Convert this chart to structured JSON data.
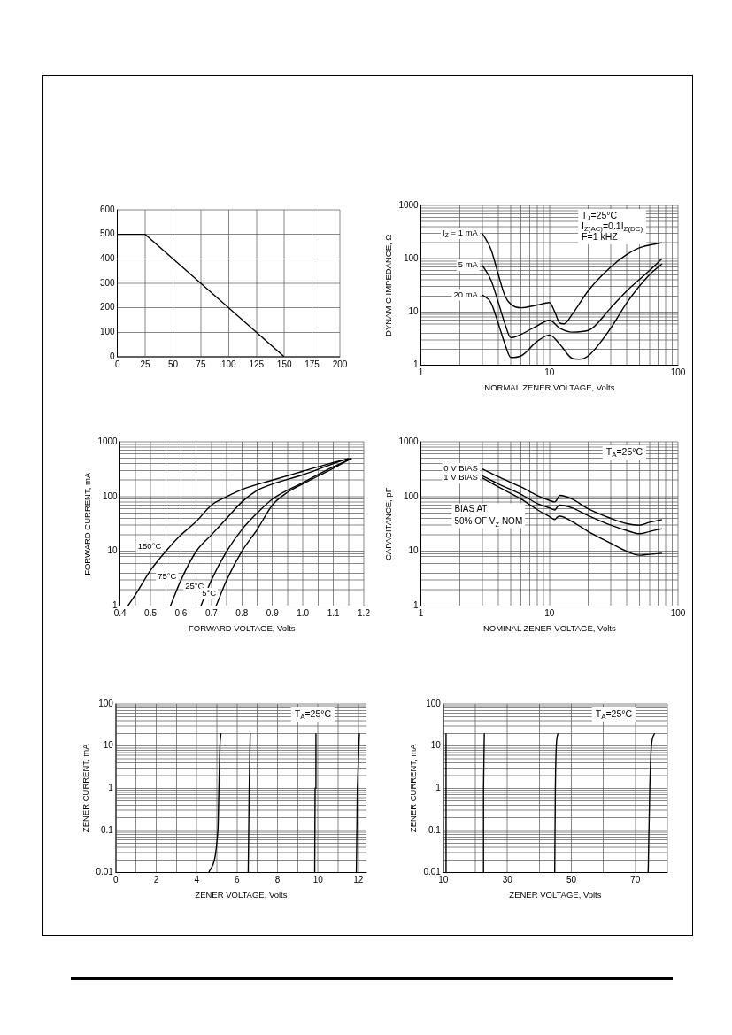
{
  "chart_data": [
    {
      "type": "line",
      "grid": true,
      "xlim": [
        0,
        200
      ],
      "ylim": [
        0,
        600
      ],
      "xticks": [
        0,
        25,
        50,
        75,
        100,
        125,
        150,
        175,
        200
      ],
      "yticks": [
        0,
        100,
        200,
        300,
        400,
        500,
        600
      ],
      "series": [
        {
          "color": "#000000",
          "x": [
            0,
            25,
            150
          ],
          "values": [
            500,
            500,
            0
          ]
        }
      ]
    },
    {
      "type": "line",
      "grid": true,
      "log": "xy",
      "xlabel": "NORMAL ZENER VOLTAGE, Volts",
      "ylabel": "DYNAMIC IMPEDANCE, Ω",
      "xlim": [
        1,
        100
      ],
      "ylim": [
        1,
        1000
      ],
      "xticks": [
        1,
        {
          "value": 2,
          "label": null
        },
        {
          "value": 3,
          "label": null
        },
        {
          "value": 4,
          "label": null
        },
        {
          "value": 5,
          "label": null
        },
        {
          "value": 6,
          "label": null
        },
        {
          "value": 7,
          "label": null
        },
        {
          "value": 8,
          "label": null
        },
        {
          "value": 9,
          "label": null
        },
        10,
        {
          "value": 20,
          "label": null
        },
        {
          "value": 30,
          "label": null
        },
        {
          "value": 40,
          "label": null
        },
        {
          "value": 50,
          "label": null
        },
        {
          "value": 60,
          "label": null
        },
        {
          "value": 70,
          "label": null
        },
        {
          "value": 80,
          "label": null
        },
        {
          "value": 90,
          "label": null
        },
        100
      ],
      "yticks": [
        1,
        {
          "value": 2,
          "label": null
        },
        {
          "value": 3,
          "label": null
        },
        {
          "value": 4,
          "label": null
        },
        {
          "value": 5,
          "label": null
        },
        {
          "value": 6,
          "label": null
        },
        {
          "value": 7,
          "label": null
        },
        {
          "value": 8,
          "label": null
        },
        {
          "value": 9,
          "label": null
        },
        10,
        {
          "value": 20,
          "label": null
        },
        {
          "value": 30,
          "label": null
        },
        {
          "value": 40,
          "label": null
        },
        {
          "value": 50,
          "label": null
        },
        {
          "value": 60,
          "label": null
        },
        {
          "value": 70,
          "label": null
        },
        {
          "value": 80,
          "label": null
        },
        {
          "value": 90,
          "label": null
        },
        100,
        {
          "value": 200,
          "label": null
        },
        {
          "value": 300,
          "label": null
        },
        {
          "value": 400,
          "label": null
        },
        {
          "value": 500,
          "label": null
        },
        {
          "value": 600,
          "label": null
        },
        {
          "value": 700,
          "label": null
        },
        {
          "value": 800,
          "label": null
        },
        {
          "value": 900,
          "label": null
        },
        1000
      ],
      "series": [
        {
          "color": "#000000",
          "x": [
            3,
            3.5,
            4,
            4.5,
            5,
            6,
            8,
            10,
            11,
            12,
            13,
            15,
            20,
            30,
            40,
            50,
            75
          ],
          "values": [
            300,
            150,
            50,
            20,
            14,
            12,
            13.5,
            15,
            10,
            6.2,
            6,
            9,
            25,
            70,
            120,
            160,
            200
          ]
        },
        {
          "color": "#000000",
          "x": [
            3,
            3.5,
            4,
            4.5,
            5,
            6,
            8,
            10,
            12,
            15,
            20,
            30,
            40,
            60,
            75
          ],
          "values": [
            75,
            40,
            15,
            6,
            3.3,
            3.8,
            5.5,
            7,
            5,
            4.2,
            4.5,
            12,
            25,
            60,
            100
          ]
        },
        {
          "color": "#000000",
          "x": [
            3,
            3.5,
            4,
            4.5,
            5,
            6,
            8,
            10,
            12,
            15,
            17,
            20,
            30,
            40,
            60,
            75
          ],
          "values": [
            21,
            15,
            6,
            2.5,
            1.4,
            1.5,
            2.8,
            3.7,
            2.5,
            1.35,
            1.3,
            1.5,
            5,
            15,
            50,
            80
          ]
        }
      ],
      "annotations": [
        "T$_{J}$=25°C",
        "I$_{Z(AC)}$=0.1I$_{Z(DC)}$",
        "F=1 kHZ",
        {
          "text": "I$_{Z}$ = 1 mA",
          "x": 3,
          "y": 300
        },
        {
          "text": "5 mA",
          "x": 3,
          "y": 75
        },
        {
          "text": "20 mA",
          "x": 3,
          "y": 21
        }
      ]
    },
    {
      "type": "line",
      "grid": true,
      "log": "y",
      "xlabel": "FORWARD VOLTAGE, Volts",
      "ylabel": "FORWARD CURRENT, mA",
      "xlim": [
        0.4,
        1.2
      ],
      "ylim": [
        1,
        1000
      ],
      "xticks": [
        0.4,
        {
          "value": 0.45,
          "label": null
        },
        0.5,
        {
          "value": 0.55,
          "label": null
        },
        0.6,
        {
          "value": 0.65,
          "label": null
        },
        0.7,
        {
          "value": 0.75,
          "label": null
        },
        0.8,
        {
          "value": 0.85,
          "label": null
        },
        0.9,
        {
          "value": 0.95,
          "label": null
        },
        {
          "value": 1,
          "label": "1.0"
        },
        {
          "value": 1.05,
          "label": null
        },
        1.1,
        {
          "value": 1.15,
          "label": null
        },
        1.2
      ],
      "yticks": [
        1,
        {
          "value": 2,
          "label": null
        },
        {
          "value": 3,
          "label": null
        },
        {
          "value": 4,
          "label": null
        },
        {
          "value": 5,
          "label": null
        },
        {
          "value": 6,
          "label": null
        },
        {
          "value": 7,
          "label": null
        },
        {
          "value": 8,
          "label": null
        },
        {
          "value": 9,
          "label": null
        },
        10,
        {
          "value": 20,
          "label": null
        },
        {
          "value": 30,
          "label": null
        },
        {
          "value": 40,
          "label": null
        },
        {
          "value": 50,
          "label": null
        },
        {
          "value": 60,
          "label": null
        },
        {
          "value": 70,
          "label": null
        },
        {
          "value": 80,
          "label": null
        },
        {
          "value": 90,
          "label": null
        },
        100,
        {
          "value": 200,
          "label": null
        },
        {
          "value": 300,
          "label": null
        },
        {
          "value": 400,
          "label": null
        },
        {
          "value": 500,
          "label": null
        },
        {
          "value": 600,
          "label": null
        },
        {
          "value": 700,
          "label": null
        },
        {
          "value": 800,
          "label": null
        },
        {
          "value": 900,
          "label": null
        },
        1000
      ],
      "series": [
        {
          "color": "#000000",
          "x": [
            0.425,
            0.45,
            0.5,
            0.55,
            0.6,
            0.65,
            0.7,
            0.75,
            0.8,
            0.9,
            1.0,
            1.1,
            1.16
          ],
          "values": [
            1,
            1.6,
            4.5,
            10,
            20,
            35,
            70,
            100,
            135,
            200,
            290,
            420,
            500
          ]
        },
        {
          "color": "#000000",
          "x": [
            0.565,
            0.6,
            0.65,
            0.7,
            0.75,
            0.8,
            0.85,
            0.9,
            1.0,
            1.1,
            1.15
          ],
          "values": [
            1,
            3,
            10,
            20,
            40,
            80,
            130,
            170,
            250,
            400,
            500
          ]
        },
        {
          "color": "#000000",
          "x": [
            0.665,
            0.7,
            0.75,
            0.8,
            0.85,
            0.9,
            1.0,
            1.1,
            1.16
          ],
          "values": [
            1,
            3,
            10,
            25,
            50,
            90,
            180,
            350,
            500
          ]
        },
        {
          "color": "#000000",
          "x": [
            0.715,
            0.75,
            0.8,
            0.85,
            0.9,
            0.95,
            1.0,
            1.1,
            1.16
          ],
          "values": [
            1,
            3,
            10,
            25,
            70,
            120,
            170,
            330,
            500
          ]
        }
      ],
      "annotations": [
        {
          "text": "150°C",
          "x": 0.55,
          "y": 12
        },
        {
          "text": "75°C",
          "x": 0.6,
          "y": 3.5
        },
        {
          "text": "25°C",
          "x": 0.69,
          "y": 2.3
        },
        {
          "text": "5°C",
          "x": 0.73,
          "y": 1.7
        }
      ]
    },
    {
      "type": "line",
      "grid": true,
      "log": "xy",
      "xlabel": "NOMINAL ZENER VOLTAGE, Volts",
      "ylabel": "CAPACITANCE, pF",
      "xlim": [
        1,
        100
      ],
      "ylim": [
        1,
        1000
      ],
      "xticks": [
        1,
        {
          "value": 2,
          "label": null
        },
        {
          "value": 3,
          "label": null
        },
        {
          "value": 4,
          "label": null
        },
        {
          "value": 5,
          "label": null
        },
        {
          "value": 6,
          "label": null
        },
        {
          "value": 7,
          "label": null
        },
        {
          "value": 8,
          "label": null
        },
        {
          "value": 9,
          "label": null
        },
        10,
        {
          "value": 20,
          "label": null
        },
        {
          "value": 30,
          "label": null
        },
        {
          "value": 40,
          "label": null
        },
        {
          "value": 50,
          "label": null
        },
        {
          "value": 60,
          "label": null
        },
        {
          "value": 70,
          "label": null
        },
        {
          "value": 80,
          "label": null
        },
        {
          "value": 90,
          "label": null
        },
        100
      ],
      "yticks": [
        1,
        {
          "value": 2,
          "label": null
        },
        {
          "value": 3,
          "label": null
        },
        {
          "value": 4,
          "label": null
        },
        {
          "value": 5,
          "label": null
        },
        {
          "value": 6,
          "label": null
        },
        {
          "value": 7,
          "label": null
        },
        {
          "value": 8,
          "label": null
        },
        {
          "value": 9,
          "label": null
        },
        10,
        {
          "value": 20,
          "label": null
        },
        {
          "value": 30,
          "label": null
        },
        {
          "value": 40,
          "label": null
        },
        {
          "value": 50,
          "label": null
        },
        {
          "value": 60,
          "label": null
        },
        {
          "value": 70,
          "label": null
        },
        {
          "value": 80,
          "label": null
        },
        {
          "value": 90,
          "label": null
        },
        100,
        {
          "value": 200,
          "label": null
        },
        {
          "value": 300,
          "label": null
        },
        {
          "value": 400,
          "label": null
        },
        {
          "value": 500,
          "label": null
        },
        {
          "value": 600,
          "label": null
        },
        {
          "value": 700,
          "label": null
        },
        {
          "value": 800,
          "label": null
        },
        {
          "value": 900,
          "label": null
        },
        1000
      ],
      "series": [
        {
          "color": "#000000",
          "x": [
            3,
            4,
            6,
            8,
            10,
            11,
            11.5,
            12,
            15,
            20,
            30,
            40,
            50,
            60,
            75
          ],
          "values": [
            320,
            230,
            150,
            105,
            85,
            80,
            90,
            105,
            90,
            60,
            40,
            32,
            30,
            34,
            38
          ]
        },
        {
          "color": "#000000",
          "x": [
            3,
            4,
            6,
            8,
            10,
            11,
            11.5,
            12,
            15,
            20,
            30,
            40,
            50,
            60,
            75
          ],
          "values": [
            240,
            170,
            110,
            75,
            62,
            57,
            65,
            70,
            62,
            45,
            30,
            24,
            21,
            23,
            26
          ]
        },
        {
          "color": "#000000",
          "x": [
            3,
            4,
            6,
            8,
            10,
            11,
            11.5,
            12,
            15,
            20,
            30,
            40,
            50,
            60,
            75
          ],
          "values": [
            220,
            150,
            90,
            58,
            43,
            38,
            42,
            44,
            35,
            23,
            14,
            10,
            8.5,
            8.8,
            9.2
          ]
        }
      ],
      "annotations": [
        "T$_{A}$=25°C",
        {
          "text": "0 V BIAS",
          "x": 3,
          "y": 320
        },
        {
          "text": "1 V BIAS",
          "x": 3,
          "y": 220
        },
        "BIAS AT\n50% OF V$_{Z}$ NOM"
      ]
    },
    {
      "type": "line",
      "grid": true,
      "log": "y",
      "xlabel": "ZENER VOLTAGE, Volts",
      "ylabel": "ZENER CURRENT, mA",
      "xlim": [
        0,
        12.4
      ],
      "ylim": [
        0.01,
        100
      ],
      "xticks": [
        0,
        {
          "value": 1,
          "label": null
        },
        2,
        {
          "value": 3,
          "label": null
        },
        4,
        {
          "value": 5,
          "label": null
        },
        6,
        {
          "value": 7,
          "label": null
        },
        8,
        {
          "value": 9,
          "label": null
        },
        10,
        {
          "value": 11,
          "label": null
        },
        12
      ],
      "yticks": [
        0.01,
        {
          "value": 0.02,
          "label": null
        },
        {
          "value": 0.03,
          "label": null
        },
        {
          "value": 0.04,
          "label": null
        },
        {
          "value": 0.05,
          "label": null
        },
        {
          "value": 0.06,
          "label": null
        },
        {
          "value": 0.07,
          "label": null
        },
        {
          "value": 0.08,
          "label": null
        },
        {
          "value": 0.09,
          "label": null
        },
        0.1,
        {
          "value": 0.2,
          "label": null
        },
        {
          "value": 0.3,
          "label": null
        },
        {
          "value": 0.4,
          "label": null
        },
        {
          "value": 0.5,
          "label": null
        },
        {
          "value": 0.6,
          "label": null
        },
        {
          "value": 0.7,
          "label": null
        },
        {
          "value": 0.8,
          "label": null
        },
        {
          "value": 0.9,
          "label": null
        },
        1,
        {
          "value": 2,
          "label": null
        },
        {
          "value": 3,
          "label": null
        },
        {
          "value": 4,
          "label": null
        },
        {
          "value": 5,
          "label": null
        },
        {
          "value": 6,
          "label": null
        },
        {
          "value": 7,
          "label": null
        },
        {
          "value": 8,
          "label": null
        },
        {
          "value": 9,
          "label": null
        },
        10,
        {
          "value": 20,
          "label": null
        },
        {
          "value": 30,
          "label": null
        },
        {
          "value": 40,
          "label": null
        },
        {
          "value": 50,
          "label": null
        },
        {
          "value": 60,
          "label": null
        },
        {
          "value": 70,
          "label": null
        },
        {
          "value": 80,
          "label": null
        },
        {
          "value": 90,
          "label": null
        },
        100
      ],
      "series": [
        {
          "color": "#000000",
          "x": [
            4.6,
            5.05,
            5.1,
            5.15,
            5.2
          ],
          "values": [
            0.01,
            0.1,
            1,
            10,
            20
          ]
        },
        {
          "color": "#000000",
          "x": [
            6.55,
            6.6,
            6.65
          ],
          "values": [
            0.01,
            1,
            20
          ]
        },
        {
          "color": "#000000",
          "x": [
            9.84,
            9.86,
            9.9
          ],
          "values": [
            0.01,
            1,
            20
          ]
        },
        {
          "color": "#000000",
          "x": [
            11.9,
            11.95,
            12.05
          ],
          "values": [
            0.01,
            1,
            20
          ]
        }
      ],
      "annotations": [
        "T$_{A}$=25°C"
      ]
    },
    {
      "type": "line",
      "grid": true,
      "log": "y",
      "xlabel": "ZENER VOLTAGE, Volts",
      "ylabel": "ZENER CURRENT, mA",
      "xlim": [
        10,
        80
      ],
      "ylim": [
        0.01,
        100
      ],
      "xticks": [
        10,
        {
          "value": 20,
          "label": null
        },
        30,
        {
          "value": 40,
          "label": null
        },
        50,
        {
          "value": 60,
          "label": null
        },
        70,
        {
          "value": 80,
          "label": null
        }
      ],
      "yticks": [
        0.01,
        {
          "value": 0.02,
          "label": null
        },
        {
          "value": 0.03,
          "label": null
        },
        {
          "value": 0.04,
          "label": null
        },
        {
          "value": 0.05,
          "label": null
        },
        {
          "value": 0.06,
          "label": null
        },
        {
          "value": 0.07,
          "label": null
        },
        {
          "value": 0.08,
          "label": null
        },
        {
          "value": 0.09,
          "label": null
        },
        0.1,
        {
          "value": 0.2,
          "label": null
        },
        {
          "value": 0.3,
          "label": null
        },
        {
          "value": 0.4,
          "label": null
        },
        {
          "value": 0.5,
          "label": null
        },
        {
          "value": 0.6,
          "label": null
        },
        {
          "value": 0.7,
          "label": null
        },
        {
          "value": 0.8,
          "label": null
        },
        {
          "value": 0.9,
          "label": null
        },
        1,
        {
          "value": 2,
          "label": null
        },
        {
          "value": 3,
          "label": null
        },
        {
          "value": 4,
          "label": null
        },
        {
          "value": 5,
          "label": null
        },
        {
          "value": 6,
          "label": null
        },
        {
          "value": 7,
          "label": null
        },
        {
          "value": 8,
          "label": null
        },
        {
          "value": 9,
          "label": null
        },
        10,
        {
          "value": 20,
          "label": null
        },
        {
          "value": 30,
          "label": null
        },
        {
          "value": 40,
          "label": null
        },
        {
          "value": 50,
          "label": null
        },
        {
          "value": 60,
          "label": null
        },
        {
          "value": 70,
          "label": null
        },
        {
          "value": 80,
          "label": null
        },
        {
          "value": 90,
          "label": null
        },
        100
      ],
      "series": [
        {
          "color": "#000000",
          "x": [
            10.8,
            10.85
          ],
          "values": [
            0.01,
            20
          ]
        },
        {
          "color": "#000000",
          "x": [
            22.5,
            22.55,
            22.8
          ],
          "values": [
            0.01,
            1,
            20
          ]
        },
        {
          "color": "#000000",
          "x": [
            44.8,
            45,
            45.3,
            45.8
          ],
          "values": [
            0.01,
            1,
            10,
            20
          ]
        },
        {
          "color": "#000000",
          "x": [
            74,
            74.5,
            75,
            76
          ],
          "values": [
            0.01,
            1,
            10,
            20
          ]
        }
      ],
      "annotations": [
        "T$_{A}$=25°C"
      ]
    }
  ]
}
